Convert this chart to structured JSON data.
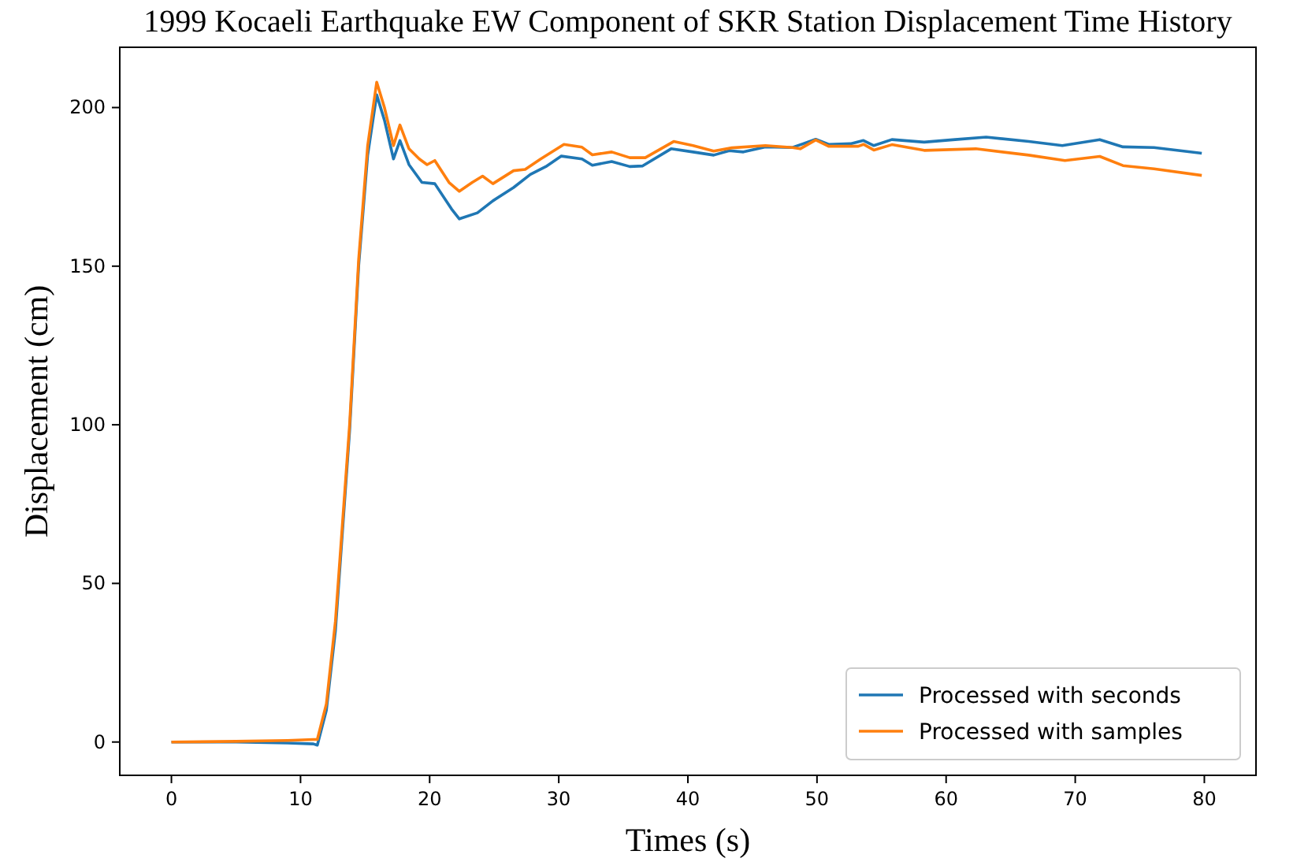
{
  "chart_data": {
    "type": "line",
    "title": "1999 Kocaeli Earthquake EW Component of SKR Station Displacement Time History",
    "xlabel": "Times (s)",
    "ylabel": "Displacement (cm)",
    "xlim": [
      -4,
      84
    ],
    "ylim": [
      -10.5,
      219
    ],
    "xticks": [
      0,
      10,
      20,
      30,
      40,
      50,
      60,
      70,
      80
    ],
    "yticks": [
      0,
      50,
      100,
      150,
      200
    ],
    "legend": "bottom right",
    "grid": false,
    "series": [
      {
        "name": "Processed with seconds",
        "color": "#1f77b4",
        "x": [
          0,
          5,
          9,
          11,
          11.3,
          12,
          12.7,
          13.8,
          14.5,
          15.2,
          15.9,
          16.5,
          17.2,
          17.7,
          18.4,
          19.4,
          20.4,
          21.7,
          22.3,
          23.7,
          24.9,
          26.5,
          27.8,
          29,
          30.2,
          31.8,
          32.6,
          34.1,
          35.5,
          36.5,
          38.7,
          40.4,
          42,
          43.2,
          44.3,
          46,
          48.1,
          49.9,
          50.9,
          52.6,
          53.6,
          54.4,
          55.8,
          58.3,
          60.7,
          63.1,
          66.4,
          69,
          71.9,
          73.7,
          76.1,
          79.8
        ],
        "values": [
          0,
          0,
          -0.3,
          -0.6,
          -1,
          10,
          35,
          98,
          150,
          185,
          204,
          196,
          183.8,
          189.6,
          182,
          176.4,
          176,
          168,
          164.9,
          166.8,
          170.6,
          174.8,
          178.9,
          181.4,
          184.7,
          183.8,
          181.8,
          183,
          181.4,
          181.6,
          187,
          186,
          185,
          186.4,
          186,
          187.6,
          187.4,
          190,
          188.4,
          188.6,
          189.6,
          188,
          189.9,
          189.1,
          189.9,
          190.7,
          189.3,
          188,
          189.9,
          187.6,
          187.4,
          185.6
        ]
      },
      {
        "name": "Processed with samples",
        "color": "#ff7f0e",
        "x": [
          0,
          5,
          9,
          11,
          11.3,
          12,
          12.7,
          13.8,
          14.5,
          15.2,
          15.9,
          16.5,
          17.2,
          17.7,
          18.4,
          19.2,
          19.8,
          20.4,
          21.5,
          22.3,
          23.3,
          24.1,
          24.9,
          26.5,
          27.4,
          28.6,
          30.4,
          31.8,
          32.6,
          34.1,
          35.5,
          36.7,
          38.9,
          40.4,
          42,
          43.4,
          46,
          48.1,
          48.7,
          49.9,
          50.9,
          53.2,
          53.6,
          54.4,
          55.8,
          58.3,
          62.3,
          66.4,
          69.2,
          71.9,
          73.7,
          76.1,
          79.8
        ],
        "values": [
          0,
          0.2,
          0.5,
          0.8,
          0.8,
          12,
          38,
          100,
          152,
          188,
          208,
          200,
          188,
          194.5,
          187,
          183.8,
          182,
          183.3,
          176.4,
          173.6,
          176.4,
          178.4,
          176,
          180.1,
          180.5,
          183.8,
          188.4,
          187.5,
          185.1,
          186,
          184.2,
          184.2,
          189.3,
          188,
          186.3,
          187.3,
          188,
          187.4,
          187,
          189.8,
          187.8,
          187.8,
          188.4,
          186.6,
          188.3,
          186.5,
          187,
          185,
          183.3,
          184.6,
          181.7,
          180.7,
          178.6
        ]
      }
    ]
  }
}
